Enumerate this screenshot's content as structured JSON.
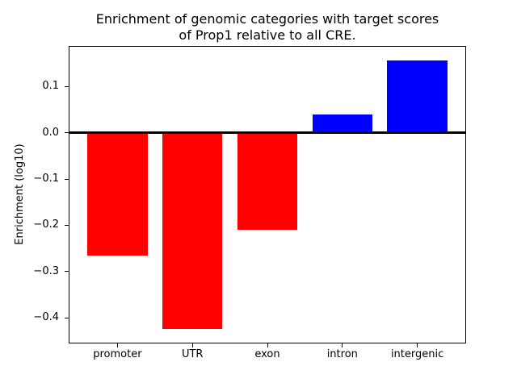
{
  "figure": {
    "background": "#ffffff"
  },
  "chart_data": {
    "type": "bar",
    "title": "Enrichment of genomic categories with target scores\nof Prop1 relative to all CRE.",
    "ylabel": "Enrichment (log10)",
    "xlabel": "",
    "categories": [
      "promoter",
      "UTR",
      "exon",
      "intron",
      "intergenic"
    ],
    "values": [
      -0.265,
      -0.425,
      -0.209,
      0.04,
      0.157
    ],
    "colors": [
      "#ff0000",
      "#ff0000",
      "#ff0000",
      "#0000ff",
      "#0000ff"
    ],
    "bar_color_negative": "#ff0000",
    "bar_color_positive": "#0000ff",
    "bar_width": 0.8,
    "xlim": [
      -0.64,
      4.64
    ],
    "ylim": [
      -0.454,
      0.186
    ],
    "yticks": [
      0.1,
      0.0,
      -0.1,
      -0.2,
      -0.3,
      -0.4
    ],
    "ytick_labels": [
      "0.1",
      "0.0",
      "−0.1",
      "−0.2",
      "−0.3",
      "−0.4"
    ],
    "zero_line": {
      "value": 0,
      "color": "#000000"
    },
    "grid": false,
    "legend": null,
    "axis_color": "#000000",
    "text_color": "#000000"
  }
}
